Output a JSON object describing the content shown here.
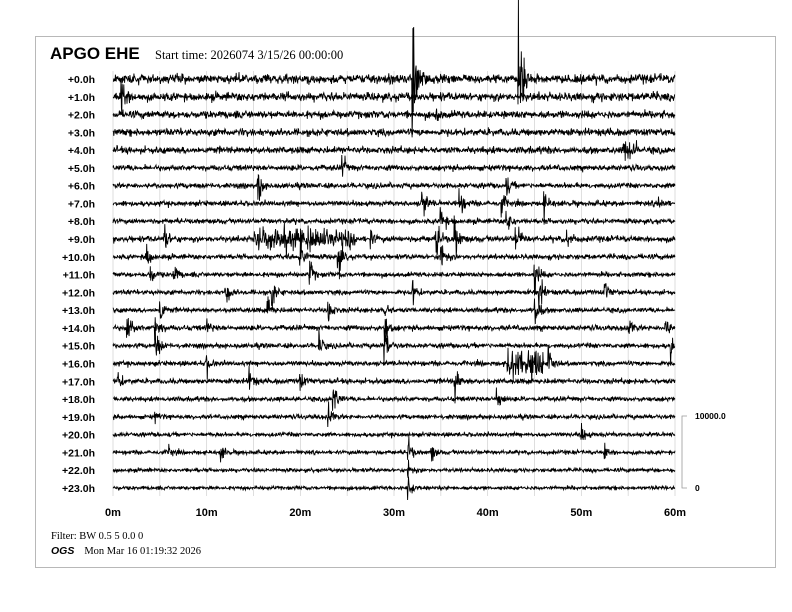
{
  "header": {
    "title": "APGO EHE",
    "start_time": "Start time: 2026074  3/15/26 00:00:00"
  },
  "footer": {
    "filter": "Filter: BW 0.5 5 0.0 0",
    "agency": "OGS",
    "timestamp": "Mon Mar 16 01:19:32 2026"
  },
  "chart_data": {
    "type": "line",
    "subtype": "helicorder",
    "row_labels": [
      "+0.0h",
      "+1.0h",
      "+2.0h",
      "+3.0h",
      "+4.0h",
      "+5.0h",
      "+6.0h",
      "+7.0h",
      "+8.0h",
      "+9.0h",
      "+10.0h",
      "+11.0h",
      "+12.0h",
      "+13.0h",
      "+14.0h",
      "+15.0h",
      "+16.0h",
      "+17.0h",
      "+18.0h",
      "+19.0h",
      "+20.0h",
      "+21.0h",
      "+22.0h",
      "+23.0h"
    ],
    "x_tick_labels": [
      "0m",
      "10m",
      "20m",
      "30m",
      "40m",
      "50m",
      "60m"
    ],
    "x_range_minutes": [
      0,
      60
    ],
    "grid_interval_minutes": 5,
    "grid": true,
    "scale_bar": {
      "top_label": "10000.0",
      "bottom_label": "0",
      "top": 10000,
      "bottom": 0
    },
    "trace_color": "#000000",
    "grid_color": "#d0d0d0",
    "row_noise_counts": [
      450,
      420,
      380,
      360,
      340,
      280,
      260,
      260,
      250,
      300,
      250,
      240,
      240,
      240,
      260,
      240,
      240,
      260,
      230,
      220,
      210,
      200,
      190,
      190
    ],
    "events": [
      {
        "row": 0,
        "minute": 32.0,
        "amp": 9000
      },
      {
        "row": 0,
        "minute": 43.3,
        "amp": 11000
      },
      {
        "row": 1,
        "minute": 0.9,
        "amp": 3000
      },
      {
        "row": 2,
        "minute": 34.5,
        "amp": 1000
      },
      {
        "row": 4,
        "minute": 55.2,
        "amp": 900,
        "duration": 1.5
      },
      {
        "row": 5,
        "minute": 24.5,
        "amp": 1500
      },
      {
        "row": 6,
        "minute": 15.5,
        "amp": 2500
      },
      {
        "row": 6,
        "minute": 42.0,
        "amp": 1500
      },
      {
        "row": 7,
        "minute": 33.0,
        "amp": 2500
      },
      {
        "row": 7,
        "minute": 37.0,
        "amp": 2000
      },
      {
        "row": 7,
        "minute": 41.5,
        "amp": 1500
      },
      {
        "row": 7,
        "minute": 46.0,
        "amp": 1500
      },
      {
        "row": 7,
        "minute": 58.3,
        "amp": 1200
      },
      {
        "row": 8,
        "minute": 35.0,
        "amp": 2500
      },
      {
        "row": 8,
        "minute": 42.0,
        "amp": 2000
      },
      {
        "row": 9,
        "minute": 5.5,
        "amp": 2000
      },
      {
        "row": 9,
        "minute": 20.5,
        "amp": 1100,
        "duration": 11
      },
      {
        "row": 9,
        "minute": 27.5,
        "amp": 1000
      },
      {
        "row": 9,
        "minute": 34.5,
        "amp": 3000
      },
      {
        "row": 9,
        "minute": 36.5,
        "amp": 3000
      },
      {
        "row": 9,
        "minute": 43.0,
        "amp": 2500
      },
      {
        "row": 9,
        "minute": 48.5,
        "amp": 1500
      },
      {
        "row": 10,
        "minute": 3.5,
        "amp": 2000
      },
      {
        "row": 10,
        "minute": 20.0,
        "amp": 2500
      },
      {
        "row": 10,
        "minute": 24.0,
        "amp": 3000
      },
      {
        "row": 10,
        "minute": 35.0,
        "amp": 3000
      },
      {
        "row": 11,
        "minute": 4.0,
        "amp": 1500
      },
      {
        "row": 11,
        "minute": 6.5,
        "amp": 1500
      },
      {
        "row": 11,
        "minute": 21.0,
        "amp": 2000
      },
      {
        "row": 11,
        "minute": 45.0,
        "amp": 2500
      },
      {
        "row": 12,
        "minute": 12.0,
        "amp": 2000
      },
      {
        "row": 12,
        "minute": 17.0,
        "amp": 2000
      },
      {
        "row": 12,
        "minute": 32.0,
        "amp": 1500
      },
      {
        "row": 12,
        "minute": 45.5,
        "amp": 2500
      },
      {
        "row": 12,
        "minute": 52.5,
        "amp": 1500
      },
      {
        "row": 13,
        "minute": 5.0,
        "amp": 2500
      },
      {
        "row": 13,
        "minute": 16.5,
        "amp": 2000
      },
      {
        "row": 13,
        "minute": 23.0,
        "amp": 2000
      },
      {
        "row": 13,
        "minute": 29.0,
        "amp": 1500
      },
      {
        "row": 13,
        "minute": 45.0,
        "amp": 3000
      },
      {
        "row": 14,
        "minute": 1.5,
        "amp": 2500
      },
      {
        "row": 14,
        "minute": 4.5,
        "amp": 2500
      },
      {
        "row": 14,
        "minute": 10.0,
        "amp": 1000
      },
      {
        "row": 14,
        "minute": 29.0,
        "amp": 2000
      },
      {
        "row": 14,
        "minute": 55.0,
        "amp": 1500
      },
      {
        "row": 14,
        "minute": 59.0,
        "amp": 2000
      },
      {
        "row": 15,
        "minute": 4.5,
        "amp": 2500
      },
      {
        "row": 15,
        "minute": 22.0,
        "amp": 1500
      },
      {
        "row": 15,
        "minute": 29.0,
        "amp": 3000
      },
      {
        "row": 15,
        "minute": 59.5,
        "amp": 2000
      },
      {
        "row": 16,
        "minute": 10.0,
        "amp": 1500
      },
      {
        "row": 16,
        "minute": 44.0,
        "amp": 1800,
        "duration": 4
      },
      {
        "row": 16,
        "minute": 46.5,
        "amp": 2500
      },
      {
        "row": 17,
        "minute": 0.5,
        "amp": 1500
      },
      {
        "row": 17,
        "minute": 14.5,
        "amp": 2000
      },
      {
        "row": 17,
        "minute": 20.0,
        "amp": 1200
      },
      {
        "row": 17,
        "minute": 36.5,
        "amp": 2500
      },
      {
        "row": 18,
        "minute": 23.5,
        "amp": 3000
      },
      {
        "row": 18,
        "minute": 41.0,
        "amp": 2500
      },
      {
        "row": 19,
        "minute": 4.5,
        "amp": 600
      },
      {
        "row": 19,
        "minute": 23.0,
        "amp": 1500
      },
      {
        "row": 20,
        "minute": 50.0,
        "amp": 1500
      },
      {
        "row": 21,
        "minute": 6.0,
        "amp": 800
      },
      {
        "row": 21,
        "minute": 11.5,
        "amp": 1200
      },
      {
        "row": 21,
        "minute": 31.5,
        "amp": 2000
      },
      {
        "row": 21,
        "minute": 34.0,
        "amp": 1500
      },
      {
        "row": 21,
        "minute": 52.5,
        "amp": 1000
      },
      {
        "row": 22,
        "minute": 31.5,
        "amp": 1500
      },
      {
        "row": 23,
        "minute": 31.5,
        "amp": 1500
      }
    ]
  }
}
